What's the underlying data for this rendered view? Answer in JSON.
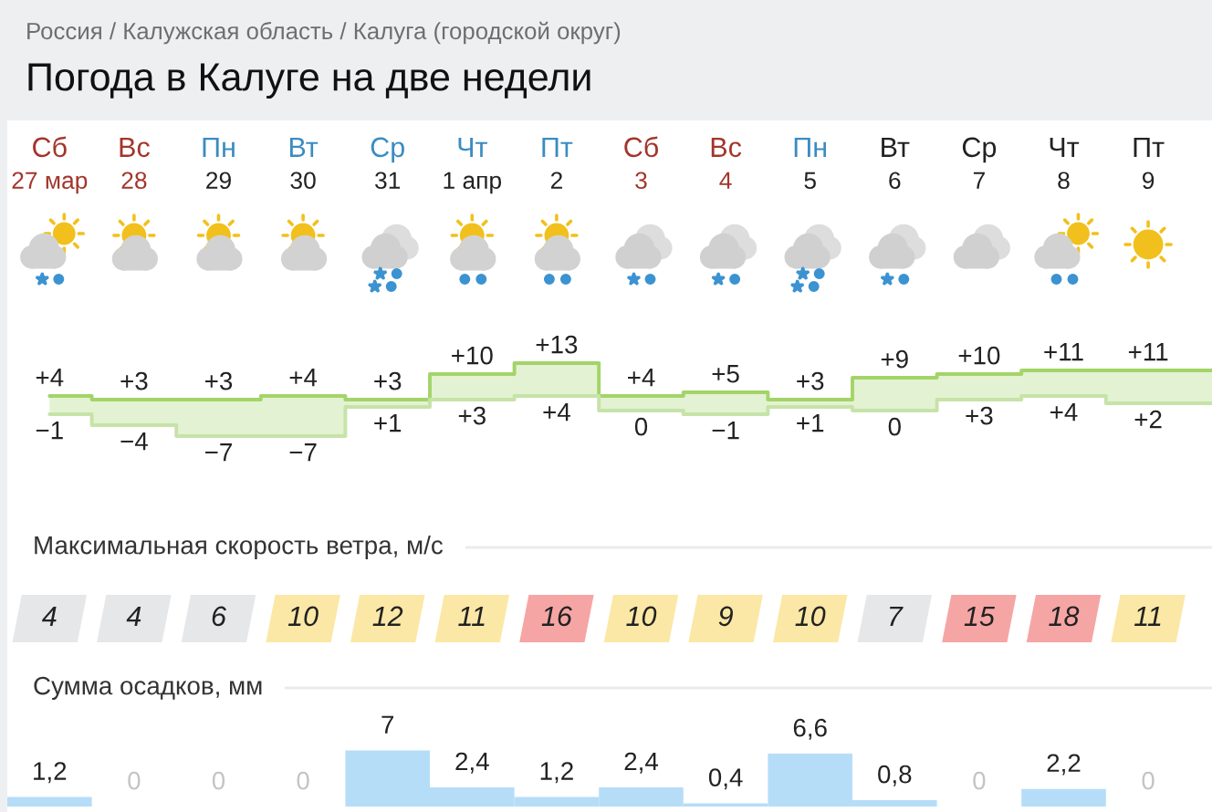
{
  "chart_data": [
    {
      "type": "step",
      "title": "Погода в Калуге на две недели",
      "annotations": [
        "Россия / Калужская область / Калуга (городской округ)"
      ],
      "tick_labels": "x",
      "categories": [
        "Сб\n27 мар",
        "Вс\n28",
        "Пн\n29",
        "Вт\n30",
        "Ср\n31",
        "Чт\n1 апр",
        "Пт\n2",
        "Сб\n3",
        "Вс\n4",
        "Пн\n5",
        "Вт\n6",
        "Ср\n7",
        "Чт\n8",
        "Пт\n9"
      ],
      "series": [
        {
          "color": "#a3d468",
          "values": [
            4,
            3,
            3,
            4,
            3,
            10,
            13,
            4,
            5,
            3,
            9,
            10,
            11,
            11
          ],
          "value_labels": [
            "+4",
            "+3",
            "+3",
            "+4",
            "+3",
            "+10",
            "+13",
            "+4",
            "+5",
            "+3",
            "+9",
            "+10",
            "+11",
            "+11"
          ],
          "lower": [
            -1,
            -4,
            -7,
            -7,
            1,
            3,
            4,
            0,
            -1,
            1,
            0,
            3,
            4,
            2
          ],
          "upper": [
            4,
            3,
            3,
            4,
            3,
            10,
            13,
            4,
            5,
            3,
            9,
            10,
            11,
            11
          ]
        },
        {
          "color": "#c6e3a8",
          "values": [
            -1,
            -4,
            -7,
            -7,
            1,
            3,
            4,
            0,
            -1,
            1,
            0,
            3,
            4,
            2
          ],
          "value_labels": [
            "−1",
            "−4",
            "−7",
            "−7",
            "+1",
            "+3",
            "+4",
            "0",
            "−1",
            "+1",
            "0",
            "+3",
            "+4",
            "+2"
          ]
        }
      ]
    },
    {
      "type": "other",
      "title": "Максимальная скорость ветра, м/с",
      "annotations": [
        "4",
        "4",
        "6",
        "10",
        "12",
        "11",
        "16",
        "10",
        "9",
        "10",
        "7",
        "15",
        "18",
        "11"
      ],
      "colors": [
        "#e6e7e9",
        "#e6e7e9",
        "#e6e7e9",
        "#fbe8a6",
        "#fbe8a6",
        "#fbe8a6",
        "#f6a5a5",
        "#fbe8a6",
        "#fbe8a6",
        "#fbe8a6",
        "#e6e7e9",
        "#f6a5a5",
        "#f6a5a5",
        "#fbe8a6"
      ]
    },
    {
      "type": "bar",
      "title": "Сумма осадков, мм",
      "color": "#b6ddf8",
      "categories": [
        null,
        null,
        null,
        null,
        null,
        null,
        null,
        null,
        null,
        null,
        null,
        null,
        null,
        null
      ],
      "values": [
        1.2,
        0,
        0,
        0,
        7,
        2.4,
        1.2,
        2.4,
        0.4,
        6.6,
        0.8,
        0,
        2.2,
        0
      ],
      "value_labels": [
        "1,2",
        "0",
        "0",
        "0",
        "7",
        "2,4",
        "1,2",
        "2,4",
        "0,4",
        "6,6",
        "0,8",
        "0",
        "2,2",
        "0"
      ]
    }
  ]
}
